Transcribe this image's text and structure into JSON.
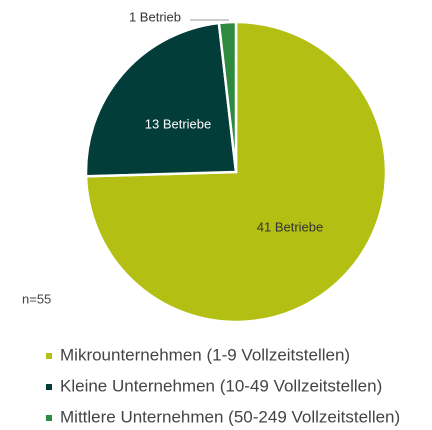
{
  "chart_data": {
    "type": "pie",
    "categories": [
      "Mikrounternehmen (1-9 Vollzeitstellen)",
      "Kleine Unternehmen (10-49 Vollzeitstellen)",
      "Mittlere Unternehmen (50-249 Vollzeitstellen)"
    ],
    "values": [
      41,
      13,
      1
    ],
    "value_labels": [
      "41 Betriebe",
      "13 Betriebe",
      "1 Betrieb"
    ],
    "colors": [
      "#b3bf12",
      "#033d3a",
      "#2e8a3e"
    ],
    "annotation": "n=55",
    "legend": "bottom"
  }
}
